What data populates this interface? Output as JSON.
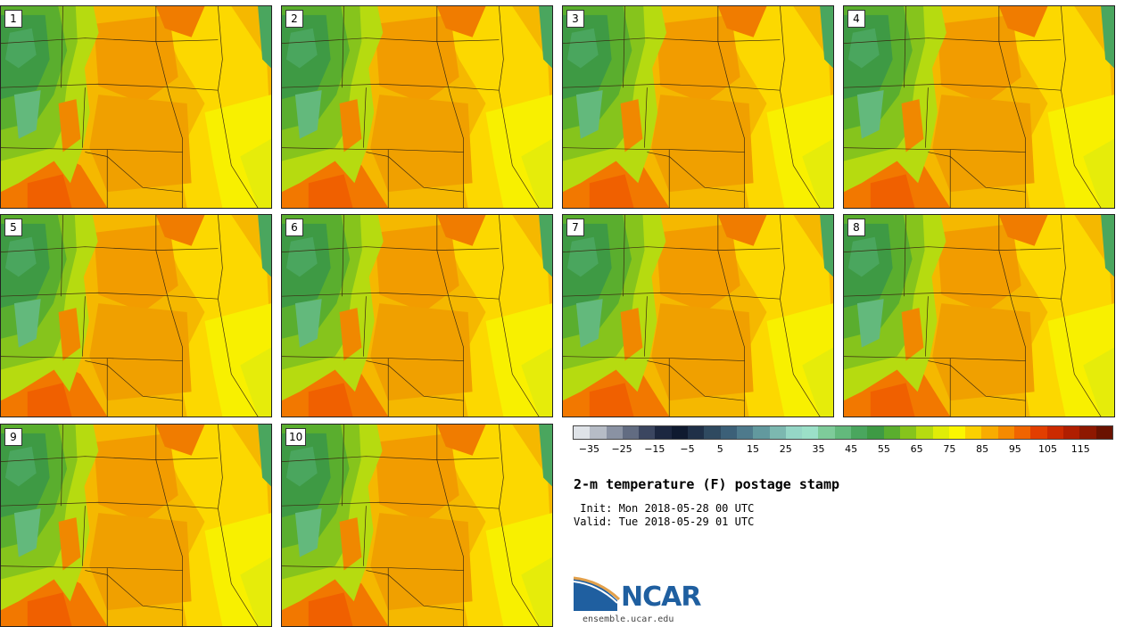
{
  "members": [
    {
      "label": "1",
      "west_extent": 0.78
    },
    {
      "label": "2",
      "west_extent": 1.08
    },
    {
      "label": "3",
      "west_extent": 1.32
    },
    {
      "label": "4",
      "west_extent": 1.22
    },
    {
      "label": "5",
      "west_extent": 0.7
    },
    {
      "label": "6",
      "west_extent": 1.12
    },
    {
      "label": "7",
      "west_extent": 1.26
    },
    {
      "label": "8",
      "west_extent": 1.18
    },
    {
      "label": "9",
      "west_extent": 0.76
    },
    {
      "label": "10",
      "west_extent": 1.02
    }
  ],
  "colorbar": {
    "colors": [
      "#dfe3e8",
      "#b6bcc6",
      "#8a92a3",
      "#626c82",
      "#3b4660",
      "#1c2740",
      "#0f1a30",
      "#1f3048",
      "#2f4a60",
      "#3c6078",
      "#4e7a8c",
      "#62999e",
      "#7cb8b0",
      "#95d6c6",
      "#9be0c8",
      "#7ecb9a",
      "#63b97c",
      "#4aa65e",
      "#3e9a44",
      "#5aae2e",
      "#86c41c",
      "#b6db10",
      "#e0ec08",
      "#fbf600",
      "#fbd000",
      "#f8ac00",
      "#f58a00",
      "#f06400",
      "#e23e00",
      "#cc2a00",
      "#b01e00",
      "#8e1800",
      "#6a1200"
    ],
    "tick_labels": [
      "−35",
      "−25",
      "−15",
      "−5",
      "5",
      "15",
      "25",
      "35",
      "45",
      "55",
      "65",
      "75",
      "85",
      "95",
      "105",
      "115"
    ],
    "range": [
      -40,
      125
    ]
  },
  "title": "2-m temperature (F) postage stamp",
  "init": " Init: Mon 2018-05-28 00 UTC",
  "valid": "Valid: Tue 2018-05-29 01 UTC",
  "logo": {
    "name": "NCAR",
    "url": "ensemble.ucar.edu"
  }
}
